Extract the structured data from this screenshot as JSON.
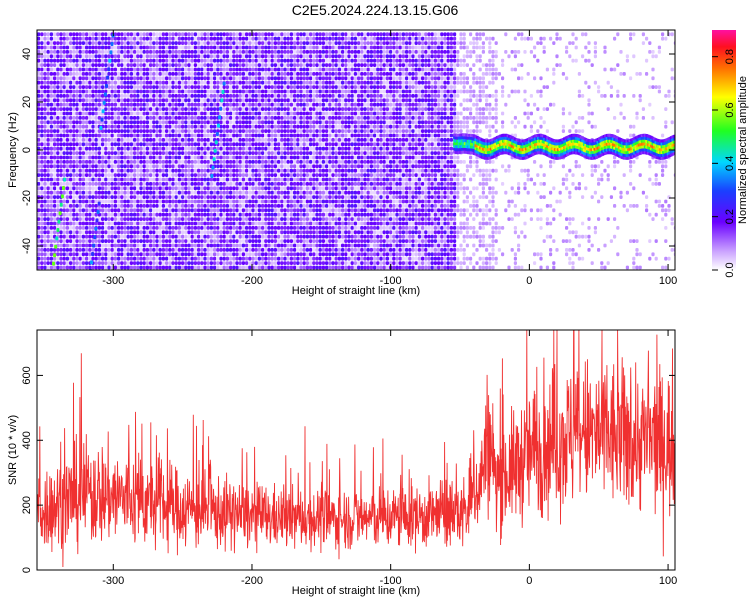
{
  "page": {
    "title": "C2E5.2024.224.13.15.G06"
  },
  "chart_data": [
    {
      "type": "heatmap",
      "xlabel": "Height of straight line (km)",
      "ylabel": "Frequency (Hz)",
      "xlim": [
        -355,
        105
      ],
      "ylim": [
        -50,
        50
      ],
      "xticks": [
        -300,
        -200,
        -100,
        0,
        100
      ],
      "yticks": [
        -40,
        -20,
        0,
        20,
        40
      ],
      "ytick_labels": [
        "-40",
        "-20",
        "0",
        "20",
        "40"
      ],
      "colorbar": {
        "label": "Normalized spectral amplitude",
        "range": [
          0,
          0.9
        ],
        "ticks": [
          0.0,
          0.2,
          0.4,
          0.6,
          0.8
        ],
        "tick_labels": [
          "0.0",
          "0.2",
          "0.4",
          "0.6",
          "0.8"
        ],
        "colormap": "rainbow (white-purple-blue-cyan-green-yellow-red-magenta)"
      },
      "features": {
        "noise_region_x": [
          -355,
          -55
        ],
        "noise_amplitude_approx": 0.05,
        "signal_band_x": [
          -55,
          105
        ],
        "signal_frequency_hz": 2,
        "signal_amplitude_approx": 0.75
      },
      "colors": {
        "low": "#e6dcff",
        "noise": "#7a22f0",
        "signal_peak": "#e0301e"
      }
    },
    {
      "type": "line",
      "xlabel": "Height of straight line (km)",
      "ylabel": "SNR (10 * v/v)",
      "xlim": [
        -355,
        105
      ],
      "ylim": [
        0,
        740
      ],
      "xticks": [
        -300,
        -200,
        -100,
        0,
        100
      ],
      "yticks": [
        0,
        200,
        400,
        600
      ],
      "series": [
        {
          "x": [
            -355,
            -340,
            -320,
            -300,
            -280,
            -260,
            -240,
            -220,
            -200,
            -180,
            -160,
            -140,
            -120,
            -100,
            -80,
            -60,
            -45,
            -35,
            -30,
            -25,
            -15,
            0,
            20,
            40,
            60,
            80,
            100,
            105
          ],
          "mean": [
            180,
            200,
            240,
            230,
            210,
            195,
            185,
            175,
            165,
            160,
            160,
            158,
            160,
            162,
            165,
            170,
            180,
            280,
            400,
            280,
            300,
            360,
            400,
            420,
            410,
            400,
            390,
            380
          ],
          "spread": [
            110,
            130,
            150,
            140,
            125,
            115,
            110,
            100,
            90,
            85,
            85,
            85,
            85,
            90,
            90,
            95,
            100,
            130,
            200,
            150,
            150,
            180,
            200,
            210,
            210,
            200,
            200,
            200
          ],
          "color": "#f03030"
        }
      ]
    }
  ]
}
